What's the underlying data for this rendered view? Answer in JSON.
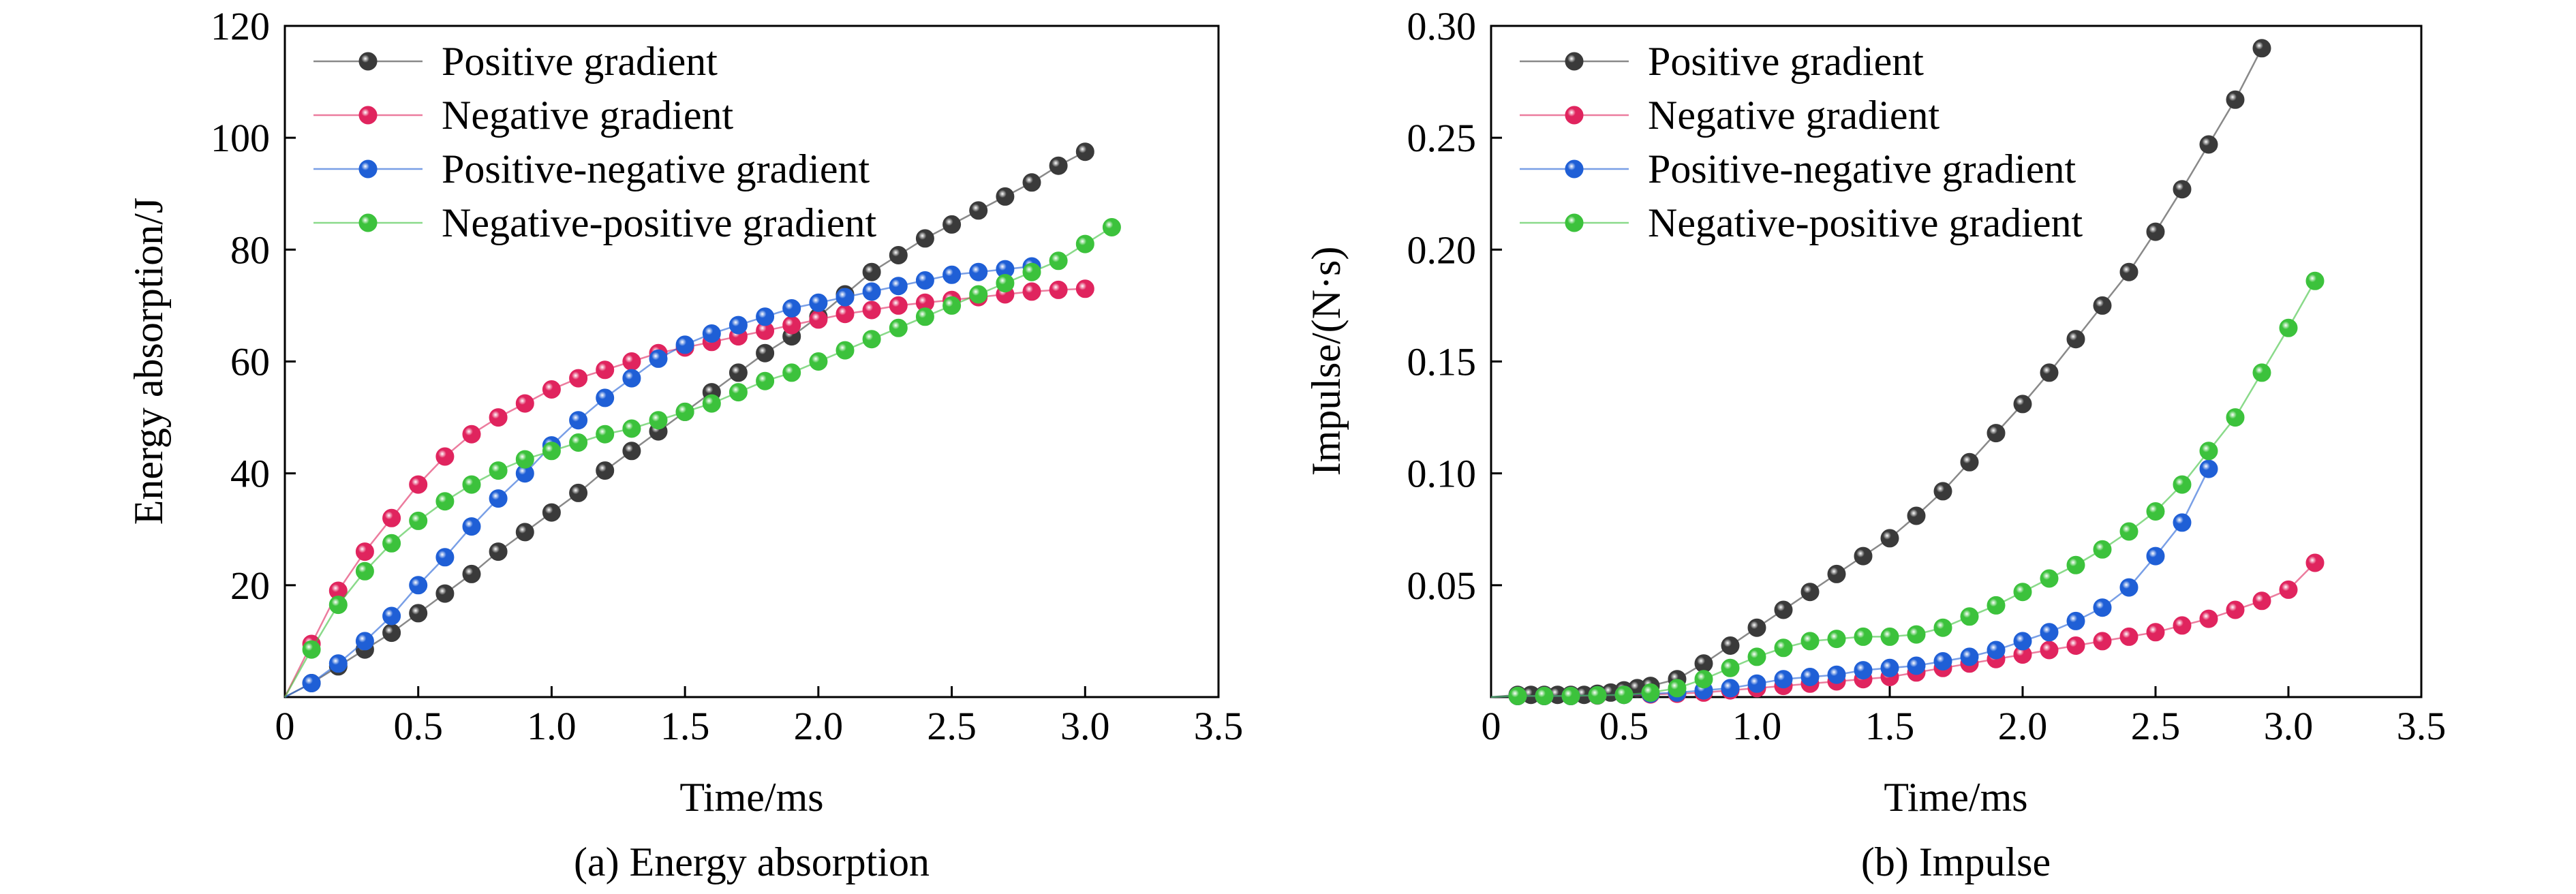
{
  "chart_data": [
    {
      "type": "line",
      "caption": "(a) Energy absorption",
      "xlabel": "Time/ms",
      "ylabel": "Energy absorption/J",
      "xlim": [
        0,
        3.5
      ],
      "ylim": [
        0,
        120
      ],
      "xticks": [
        0,
        0.5,
        1.0,
        1.5,
        2.0,
        2.5,
        3.0,
        3.5
      ],
      "xtick_labels": [
        "0",
        "0.5",
        "1.0",
        "1.5",
        "2.0",
        "2.5",
        "3.0",
        "3.5"
      ],
      "yticks": [
        20,
        40,
        60,
        80,
        100,
        120
      ],
      "ytick_labels": [
        "20",
        "40",
        "60",
        "80",
        "100",
        "120"
      ],
      "legend_position": "top-left",
      "grid": false,
      "series": [
        {
          "name": "Positive gradient",
          "color": "#3a3a3a",
          "x": [
            0.1,
            0.2,
            0.3,
            0.4,
            0.5,
            0.6,
            0.7,
            0.8,
            0.9,
            1.0,
            1.1,
            1.2,
            1.3,
            1.4,
            1.5,
            1.6,
            1.7,
            1.8,
            1.9,
            2.0,
            2.1,
            2.2,
            2.3,
            2.4,
            2.5,
            2.6,
            2.7,
            2.8,
            2.9,
            3.0
          ],
          "y": [
            2.5,
            5.5,
            8.5,
            11.5,
            15,
            18.5,
            22,
            26,
            29.5,
            33,
            36.5,
            40.5,
            44,
            47.5,
            51,
            54.5,
            58,
            61.5,
            64.5,
            68,
            72,
            76,
            79,
            82,
            84.5,
            87,
            89.5,
            92,
            95,
            97.5
          ]
        },
        {
          "name": "Negative gradient",
          "color": "#e0245e",
          "x": [
            0.1,
            0.2,
            0.3,
            0.4,
            0.5,
            0.6,
            0.7,
            0.8,
            0.9,
            1.0,
            1.1,
            1.2,
            1.3,
            1.4,
            1.5,
            1.6,
            1.7,
            1.8,
            1.9,
            2.0,
            2.1,
            2.2,
            2.3,
            2.4,
            2.5,
            2.6,
            2.7,
            2.8,
            2.9,
            3.0
          ],
          "y": [
            9.5,
            19,
            26,
            32,
            38,
            43,
            47,
            50,
            52.5,
            55,
            57,
            58.5,
            60,
            61.5,
            62.5,
            63.5,
            64.5,
            65.5,
            66.5,
            67.5,
            68.5,
            69.2,
            70,
            70.5,
            71,
            71.5,
            72,
            72.5,
            72.8,
            73
          ]
        },
        {
          "name": "Positive-negative gradient",
          "color": "#1f5fd6",
          "x": [
            0.1,
            0.2,
            0.3,
            0.4,
            0.5,
            0.6,
            0.7,
            0.8,
            0.9,
            1.0,
            1.1,
            1.2,
            1.3,
            1.4,
            1.5,
            1.6,
            1.7,
            1.8,
            1.9,
            2.0,
            2.1,
            2.2,
            2.3,
            2.4,
            2.5,
            2.6,
            2.7,
            2.8
          ],
          "y": [
            2.5,
            6,
            10,
            14.5,
            20,
            25,
            30.5,
            35.5,
            40,
            45,
            49.5,
            53.5,
            57,
            60.5,
            63,
            65,
            66.5,
            68,
            69.5,
            70.5,
            71.5,
            72.5,
            73.5,
            74.5,
            75.5,
            76,
            76.5,
            77
          ]
        },
        {
          "name": "Negative-positive gradient",
          "color": "#3cc23c",
          "x": [
            0.1,
            0.2,
            0.3,
            0.4,
            0.5,
            0.6,
            0.7,
            0.8,
            0.9,
            1.0,
            1.1,
            1.2,
            1.3,
            1.4,
            1.5,
            1.6,
            1.7,
            1.8,
            1.9,
            2.0,
            2.1,
            2.2,
            2.3,
            2.4,
            2.5,
            2.6,
            2.7,
            2.8,
            2.9,
            3.0,
            3.1
          ],
          "y": [
            8.5,
            16.5,
            22.5,
            27.5,
            31.5,
            35,
            38,
            40.5,
            42.5,
            44,
            45.5,
            47,
            48,
            49.5,
            51,
            52.5,
            54.5,
            56.5,
            58,
            60,
            62,
            64,
            66,
            68,
            70,
            72,
            74,
            76,
            78,
            81,
            84
          ]
        }
      ]
    },
    {
      "type": "line",
      "caption": "(b) Impulse",
      "xlabel": "Time/ms",
      "ylabel": "Impulse/(N·s)",
      "xlim": [
        0,
        3.5
      ],
      "ylim": [
        0,
        0.3
      ],
      "xticks": [
        0,
        0.5,
        1.0,
        1.5,
        2.0,
        2.5,
        3.0,
        3.5
      ],
      "xtick_labels": [
        "0",
        "0.5",
        "1.0",
        "1.5",
        "2.0",
        "2.5",
        "3.0",
        "3.5"
      ],
      "yticks": [
        0.05,
        0.1,
        0.15,
        0.2,
        0.25,
        0.3
      ],
      "ytick_labels": [
        "0.05",
        "0.10",
        "0.15",
        "0.20",
        "0.25",
        "0.30"
      ],
      "legend_position": "top-left",
      "grid": false,
      "series": [
        {
          "name": "Positive gradient",
          "color": "#3a3a3a",
          "x": [
            0.1,
            0.15,
            0.2,
            0.25,
            0.3,
            0.35,
            0.4,
            0.45,
            0.5,
            0.55,
            0.6,
            0.7,
            0.8,
            0.9,
            1.0,
            1.1,
            1.2,
            1.3,
            1.4,
            1.5,
            1.6,
            1.7,
            1.8,
            1.9,
            2.0,
            2.1,
            2.2,
            2.3,
            2.4,
            2.5,
            2.6,
            2.7,
            2.8,
            2.9
          ],
          "y": [
            0.001,
            0.001,
            0.001,
            0.001,
            0.001,
            0.001,
            0.0015,
            0.002,
            0.003,
            0.004,
            0.005,
            0.008,
            0.015,
            0.023,
            0.031,
            0.039,
            0.047,
            0.055,
            0.063,
            0.071,
            0.081,
            0.092,
            0.105,
            0.118,
            0.131,
            0.145,
            0.16,
            0.175,
            0.19,
            0.208,
            0.227,
            0.247,
            0.267,
            0.29
          ]
        },
        {
          "name": "Negative gradient",
          "color": "#e0245e",
          "x": [
            0.1,
            0.2,
            0.3,
            0.4,
            0.5,
            0.6,
            0.7,
            0.8,
            0.9,
            1.0,
            1.1,
            1.2,
            1.3,
            1.4,
            1.5,
            1.6,
            1.7,
            1.8,
            1.9,
            2.0,
            2.1,
            2.2,
            2.3,
            2.4,
            2.5,
            2.6,
            2.7,
            2.8,
            2.9,
            3.0,
            3.1
          ],
          "y": [
            0.0005,
            0.0005,
            0.0005,
            0.0007,
            0.001,
            0.0012,
            0.0015,
            0.002,
            0.003,
            0.004,
            0.005,
            0.006,
            0.007,
            0.008,
            0.009,
            0.011,
            0.013,
            0.015,
            0.017,
            0.019,
            0.021,
            0.023,
            0.025,
            0.027,
            0.029,
            0.032,
            0.035,
            0.039,
            0.043,
            0.048,
            0.06
          ]
        },
        {
          "name": "Positive-negative gradient",
          "color": "#1f5fd6",
          "x": [
            0.1,
            0.2,
            0.3,
            0.4,
            0.5,
            0.6,
            0.7,
            0.8,
            0.9,
            1.0,
            1.1,
            1.2,
            1.3,
            1.4,
            1.5,
            1.6,
            1.7,
            1.8,
            1.9,
            2.0,
            2.1,
            2.2,
            2.3,
            2.4,
            2.5,
            2.6,
            2.7
          ],
          "y": [
            0.0005,
            0.0005,
            0.0005,
            0.0008,
            0.001,
            0.0015,
            0.002,
            0.003,
            0.004,
            0.006,
            0.008,
            0.009,
            0.01,
            0.012,
            0.013,
            0.014,
            0.016,
            0.018,
            0.021,
            0.025,
            0.029,
            0.034,
            0.04,
            0.049,
            0.063,
            0.078,
            0.102
          ]
        },
        {
          "name": "Negative-positive gradient",
          "color": "#3cc23c",
          "x": [
            0.1,
            0.2,
            0.3,
            0.4,
            0.5,
            0.6,
            0.7,
            0.8,
            0.9,
            1.0,
            1.1,
            1.2,
            1.3,
            1.4,
            1.5,
            1.6,
            1.7,
            1.8,
            1.9,
            2.0,
            2.1,
            2.2,
            2.3,
            2.4,
            2.5,
            2.6,
            2.7,
            2.8,
            2.9,
            3.0,
            3.1
          ],
          "y": [
            0.0005,
            0.0005,
            0.0005,
            0.0008,
            0.001,
            0.002,
            0.004,
            0.008,
            0.013,
            0.018,
            0.022,
            0.025,
            0.026,
            0.027,
            0.027,
            0.028,
            0.031,
            0.036,
            0.041,
            0.047,
            0.053,
            0.059,
            0.066,
            0.074,
            0.083,
            0.095,
            0.11,
            0.125,
            0.145,
            0.165,
            0.186
          ]
        }
      ]
    }
  ]
}
